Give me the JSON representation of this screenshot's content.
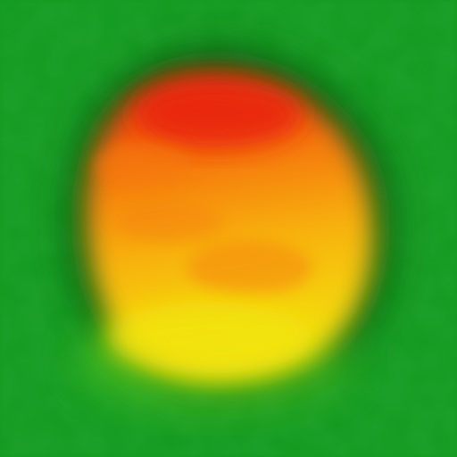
{
  "image": {
    "subject": "blurred blob",
    "colors": {
      "background": "#139a1e",
      "background_dark": "#0a7d12",
      "shadow": "#073a08",
      "blob_top": "#e8200a",
      "blob_mid": "#f57a0c",
      "blob_low": "#f8b20e",
      "blob_bottom": "#f2e408",
      "halo": "#6bd21a"
    }
  }
}
